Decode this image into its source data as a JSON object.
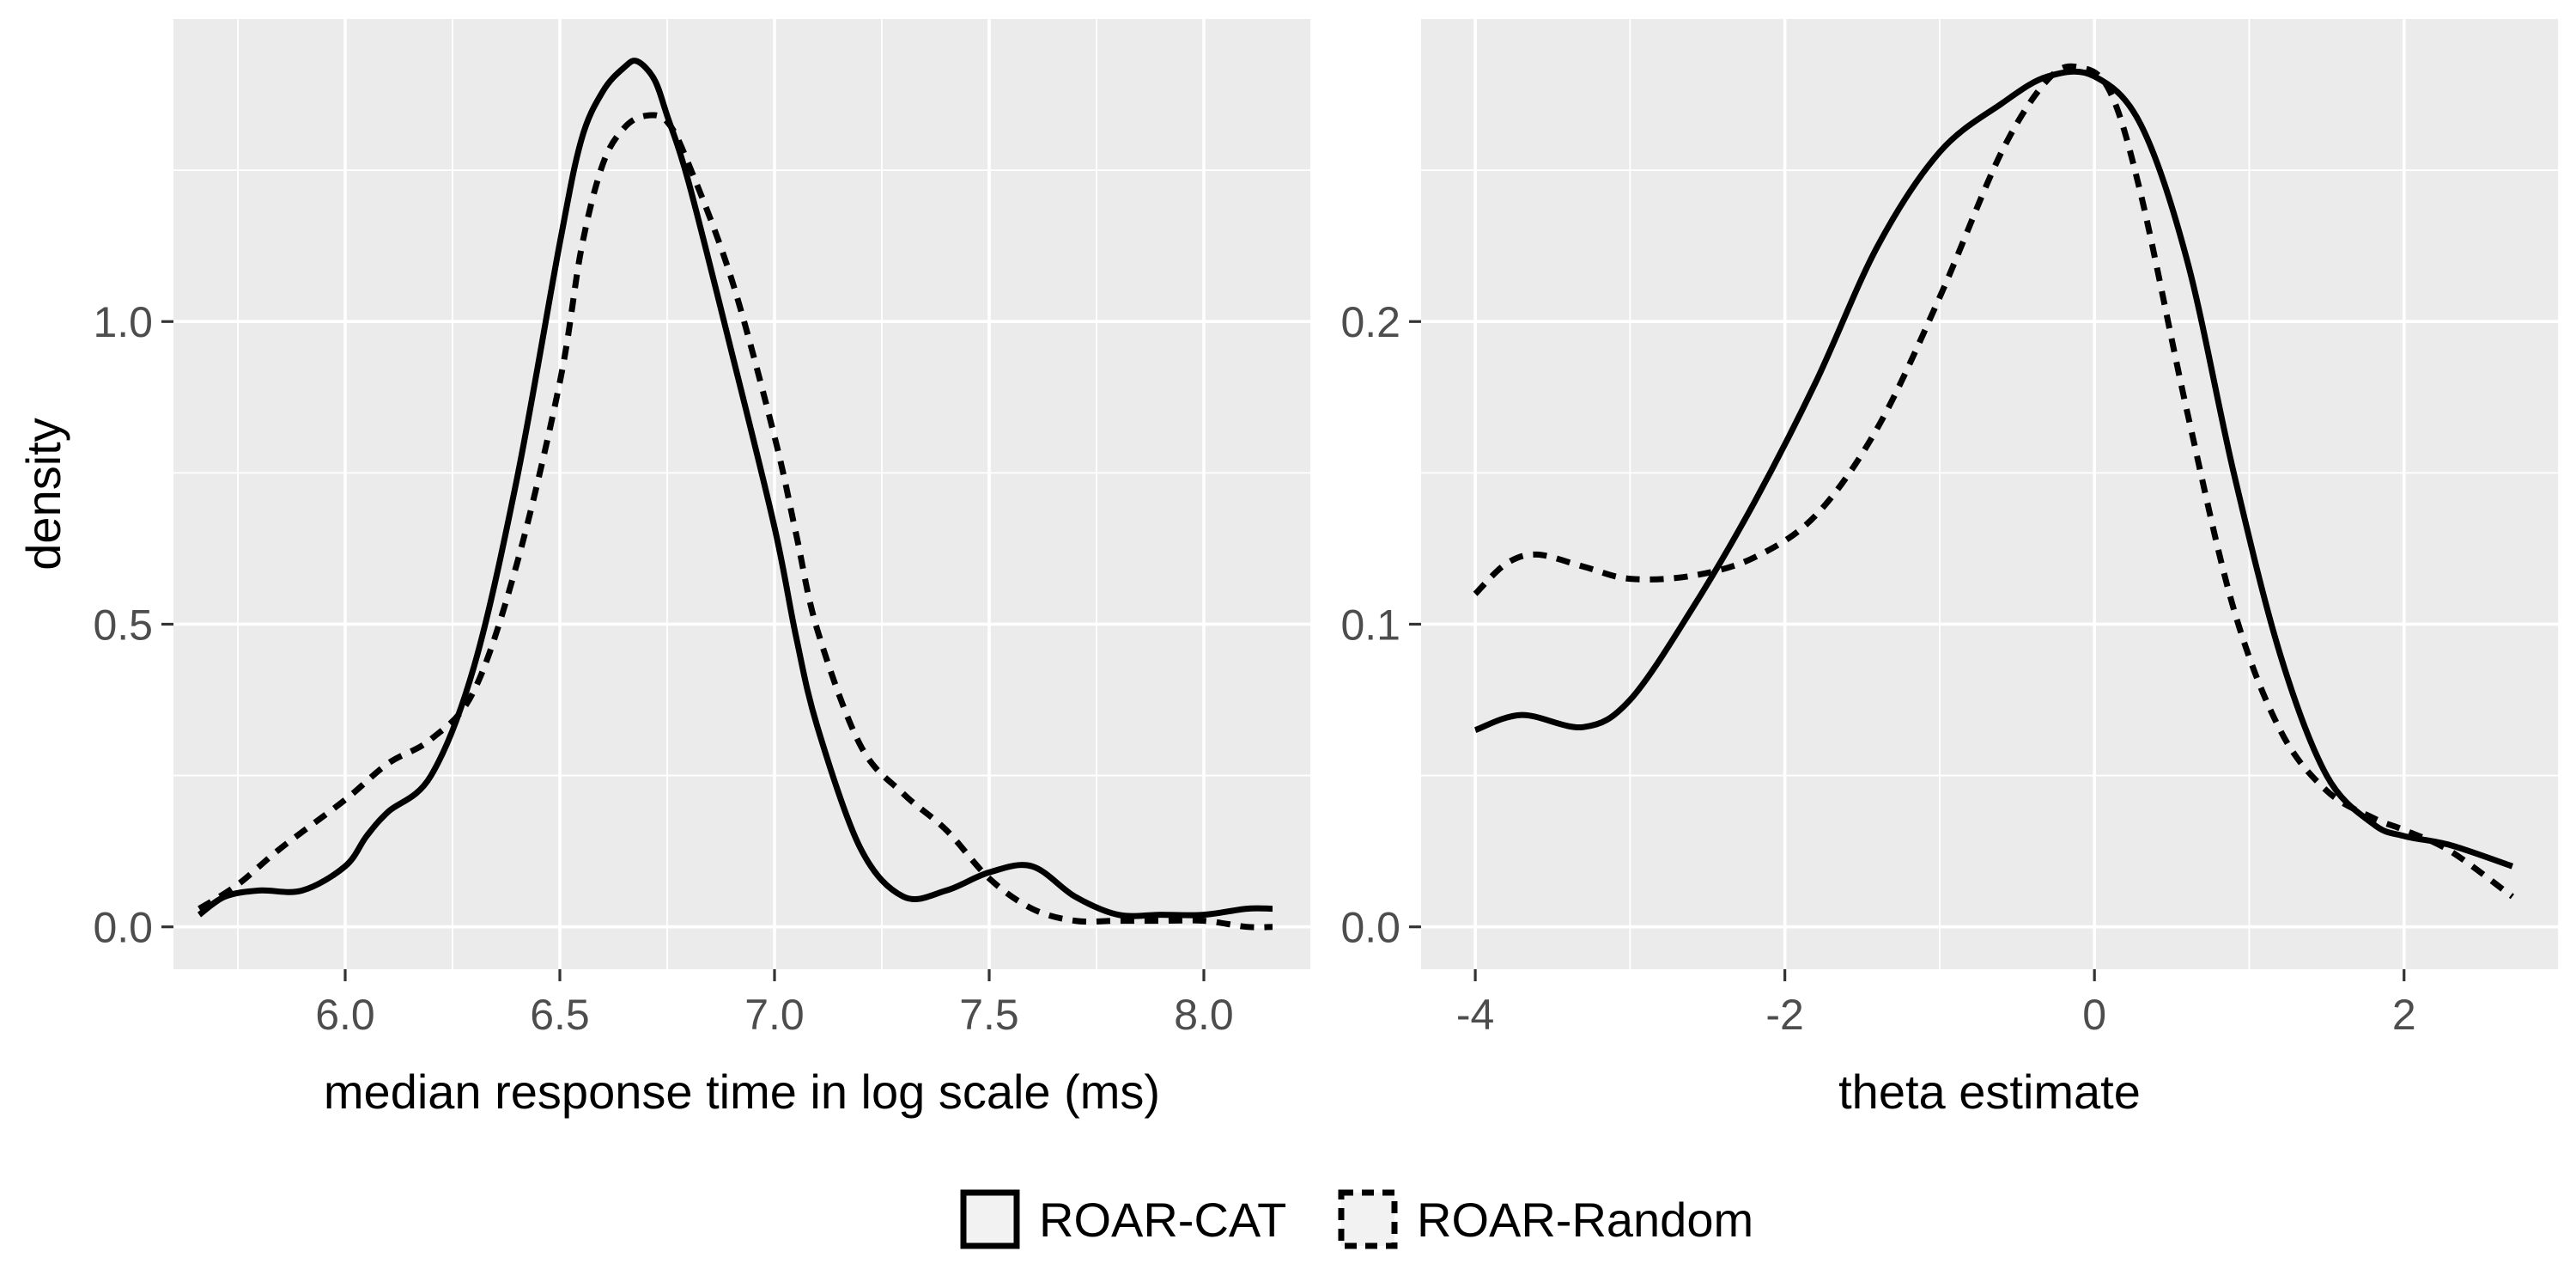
{
  "colors": {
    "panel": "#ebebeb",
    "grid": "#ffffff",
    "tick_text": "#4d4d4d",
    "line": "#000000",
    "legend_fill": "#f2f2f2"
  },
  "legend": {
    "position": "bottom",
    "items": [
      {
        "label": "ROAR-CAT",
        "linetype": "solid"
      },
      {
        "label": "ROAR-Random",
        "linetype": "dashed"
      }
    ]
  },
  "chart_data": [
    {
      "type": "line",
      "xlabel": "median response time in log scale (ms)",
      "ylabel": "density",
      "xlim": [
        5.6,
        8.25
      ],
      "ylim": [
        -0.07,
        1.5
      ],
      "x_ticks": [
        6.0,
        6.5,
        7.0,
        7.5,
        8.0
      ],
      "x_tick_labels": [
        "6.0",
        "6.5",
        "7.0",
        "7.5",
        "8.0"
      ],
      "y_ticks": [
        0.0,
        0.5,
        1.0
      ],
      "y_tick_labels": [
        "0.0",
        "0.5",
        "1.0"
      ],
      "grid": true,
      "series": [
        {
          "name": "ROAR-CAT",
          "linetype": "solid",
          "x": [
            5.66,
            5.72,
            5.8,
            5.9,
            6.0,
            6.05,
            6.1,
            6.2,
            6.3,
            6.4,
            6.5,
            6.55,
            6.6,
            6.65,
            6.68,
            6.72,
            6.75,
            6.8,
            6.9,
            7.0,
            7.05,
            7.1,
            7.2,
            7.3,
            7.4,
            7.5,
            7.6,
            7.7,
            7.8,
            7.9,
            8.0,
            8.1,
            8.16
          ],
          "y": [
            0.02,
            0.05,
            0.06,
            0.06,
            0.1,
            0.15,
            0.19,
            0.25,
            0.43,
            0.74,
            1.13,
            1.3,
            1.38,
            1.42,
            1.43,
            1.4,
            1.34,
            1.23,
            0.95,
            0.66,
            0.48,
            0.33,
            0.13,
            0.05,
            0.06,
            0.09,
            0.1,
            0.05,
            0.02,
            0.02,
            0.02,
            0.03,
            0.03
          ]
        },
        {
          "name": "ROAR-Random",
          "linetype": "dashed",
          "x": [
            5.66,
            5.75,
            5.85,
            6.0,
            6.1,
            6.2,
            6.3,
            6.4,
            6.5,
            6.55,
            6.6,
            6.65,
            6.7,
            6.75,
            6.8,
            6.9,
            7.0,
            7.05,
            7.1,
            7.2,
            7.3,
            7.4,
            7.5,
            7.6,
            7.7,
            7.8,
            7.9,
            8.0,
            8.1,
            8.16
          ],
          "y": [
            0.03,
            0.07,
            0.13,
            0.21,
            0.27,
            0.31,
            0.39,
            0.6,
            0.9,
            1.12,
            1.26,
            1.32,
            1.34,
            1.33,
            1.26,
            1.07,
            0.81,
            0.65,
            0.49,
            0.3,
            0.22,
            0.16,
            0.08,
            0.03,
            0.01,
            0.01,
            0.01,
            0.01,
            0.0,
            0.0
          ]
        }
      ]
    },
    {
      "type": "line",
      "xlabel": "theta estimate",
      "ylabel": "",
      "xlim": [
        -4.35,
        3.0
      ],
      "ylim": [
        -0.014,
        0.3
      ],
      "x_ticks": [
        -4,
        -2,
        0,
        2
      ],
      "x_tick_labels": [
        "-4",
        "-2",
        "0",
        "2"
      ],
      "y_ticks": [
        0.0,
        0.1,
        0.2
      ],
      "y_tick_labels": [
        "0.0",
        "0.1",
        "0.2"
      ],
      "grid": true,
      "series": [
        {
          "name": "ROAR-CAT",
          "linetype": "solid",
          "x": [
            -4.0,
            -3.7,
            -3.3,
            -3.0,
            -2.6,
            -2.2,
            -1.8,
            -1.4,
            -1.0,
            -0.6,
            -0.3,
            0.0,
            0.3,
            0.6,
            0.9,
            1.2,
            1.5,
            1.8,
            2.0,
            2.3,
            2.7
          ],
          "y": [
            0.065,
            0.07,
            0.066,
            0.075,
            0.105,
            0.14,
            0.18,
            0.225,
            0.256,
            0.272,
            0.281,
            0.281,
            0.265,
            0.22,
            0.15,
            0.09,
            0.05,
            0.034,
            0.03,
            0.027,
            0.02
          ]
        },
        {
          "name": "ROAR-Random",
          "linetype": "dashed",
          "x": [
            -4.0,
            -3.8,
            -3.6,
            -3.3,
            -3.0,
            -2.6,
            -2.2,
            -1.8,
            -1.4,
            -1.0,
            -0.6,
            -0.3,
            -0.1,
            0.1,
            0.3,
            0.6,
            0.9,
            1.2,
            1.5,
            1.8,
            2.0,
            2.3,
            2.7
          ],
          "y": [
            0.11,
            0.12,
            0.123,
            0.119,
            0.115,
            0.116,
            0.122,
            0.136,
            0.165,
            0.208,
            0.256,
            0.28,
            0.284,
            0.276,
            0.242,
            0.17,
            0.105,
            0.065,
            0.045,
            0.036,
            0.032,
            0.025,
            0.01
          ]
        }
      ]
    }
  ]
}
